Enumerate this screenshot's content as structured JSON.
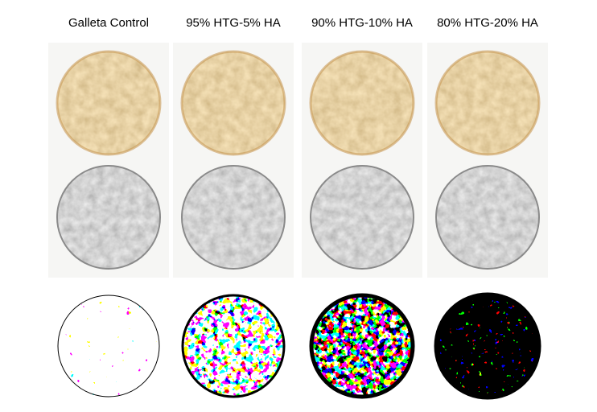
{
  "columns": [
    {
      "header": "Galleta Control"
    },
    {
      "header": "95% HTG-5% HA"
    },
    {
      "header": "90% HTG-10% HA"
    },
    {
      "header": "80% HTG-20% HA"
    }
  ]
}
